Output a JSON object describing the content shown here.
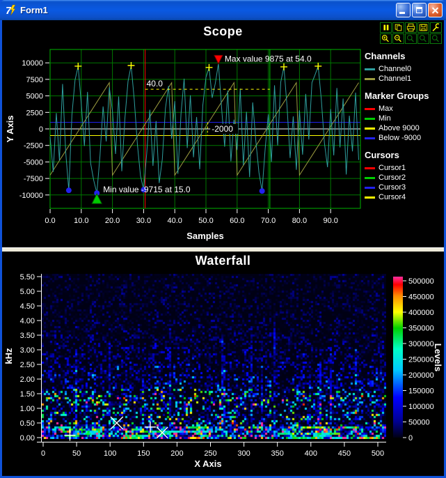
{
  "window": {
    "title": "Form1"
  },
  "toolbar": {
    "buttons": [
      "pause",
      "copy",
      "print",
      "save",
      "tools",
      "zoom-in",
      "zoom-out",
      "zoom-x",
      "zoom-y",
      "zoom-reset"
    ]
  },
  "scope": {
    "title": "Scope",
    "x_axis": {
      "label": "Samples",
      "tick_labels": [
        "0.0",
        "10.0",
        "20.0",
        "30.0",
        "40.0",
        "50.0",
        "60.0",
        "70.0",
        "80.0",
        "90.0"
      ]
    },
    "y_axis": {
      "label": "Y Axis",
      "tick_labels": [
        "10000",
        "7500",
        "5000",
        "2500",
        "0",
        "-2500",
        "-5000",
        "-7500",
        "-10000"
      ]
    },
    "legend": {
      "groups": [
        {
          "title": "Channels",
          "items": [
            {
              "label": "Channel0",
              "color": "#2E9E9E"
            },
            {
              "label": "Channel1",
              "color": "#9C9C3F"
            }
          ]
        },
        {
          "title": "Marker Groups",
          "items": [
            {
              "label": "Max",
              "color": "#FF0000"
            },
            {
              "label": "Min",
              "color": "#00CC00"
            },
            {
              "label": "Above 9000",
              "color": "#FFFF00"
            },
            {
              "label": "Below -9000",
              "color": "#2222EE"
            }
          ]
        },
        {
          "title": "Cursors",
          "items": [
            {
              "label": "Cursor1",
              "color": "#FF0000"
            },
            {
              "label": "Cursor2",
              "color": "#00CC00"
            },
            {
              "label": "Cursor3",
              "color": "#2222EE"
            },
            {
              "label": "Cursor4",
              "color": "#FFFF00"
            }
          ]
        }
      ]
    }
  },
  "waterfall": {
    "title": "Waterfall",
    "x_axis": {
      "label": "X Axis",
      "tick_labels": [
        "0",
        "50",
        "100",
        "150",
        "200",
        "250",
        "300",
        "350",
        "400",
        "450",
        "500"
      ]
    },
    "y_axis": {
      "label": "kHz",
      "tick_labels": [
        "5.50",
        "5.00",
        "4.50",
        "4.00",
        "3.50",
        "3.00",
        "2.50",
        "2.00",
        "1.50",
        "1.00",
        "0.50",
        "0.00"
      ]
    },
    "colorbar": {
      "label": "Levels",
      "tick_labels": [
        "500000",
        "450000",
        "400000",
        "350000",
        "300000",
        "250000",
        "200000",
        "150000",
        "100000",
        "50000",
        "0"
      ]
    }
  },
  "chart_data": [
    {
      "type": "line",
      "title": "Scope",
      "xlabel": "Samples",
      "ylabel": "Y Axis",
      "xlim": [
        0,
        99.5
      ],
      "ylim": [
        -12000,
        12000
      ],
      "x_ticks": [
        0,
        10,
        20,
        30,
        40,
        50,
        60,
        70,
        80,
        90
      ],
      "y_ticks": [
        10000,
        7500,
        5000,
        2500,
        0,
        -2500,
        -5000,
        -7500,
        -10000
      ],
      "grid": true,
      "legend_position": "right",
      "series": [
        {
          "name": "Channel0",
          "color": "#2E9E9E",
          "values": [
            -1200,
            -6500,
            2400,
            -4800,
            6800,
            -3500,
            -9300,
            2100,
            7400,
            9500,
            3800,
            -2600,
            5600,
            -5200,
            -7800,
            -9715,
            -4100,
            3400,
            -1900,
            6300,
            2700,
            -3800,
            4900,
            -6400,
            1600,
            7200,
            9600,
            4400,
            -2300,
            -7100,
            -9200,
            -3700,
            2900,
            -5600,
            1200,
            -8200,
            -4600,
            3100,
            6500,
            -1500,
            4200,
            -6800,
            2300,
            7600,
            -2900,
            5100,
            -4300,
            1800,
            -6100,
            3600,
            7800,
            9300,
            4700,
            6900,
            9875,
            3300,
            -2700,
            5800,
            -4900,
            1400,
            -3200,
            6100,
            -5500,
            2600,
            -7300,
            4000,
            -1800,
            -6600,
            -9400,
            -3000,
            2200,
            -5000,
            6600,
            -2500,
            7100,
            9400,
            3500,
            -4400,
            1900,
            -6200,
            2800,
            -3900,
            5300,
            -1600,
            7000,
            8200,
            9500,
            4500,
            -2100,
            -5800,
            3000,
            -4000,
            6200,
            -2800,
            4600,
            -6900,
            2000,
            -3400,
            5500,
            -4700
          ]
        },
        {
          "name": "Channel1",
          "color": "#9C9C3F",
          "waveform": "sawtooth",
          "period": 20,
          "min": -7000,
          "max": 7000,
          "n": 100
        }
      ],
      "markers": {
        "max": {
          "x": 54,
          "y": 9875,
          "label": "Max value 9875 at 54.0",
          "color": "#FF0000"
        },
        "min": {
          "x": 15,
          "y": -9715,
          "label": "Min value -9715 at 15.0",
          "color": "#00CC00"
        },
        "above_9000": [
          {
            "x": 9,
            "y": 9500
          },
          {
            "x": 26,
            "y": 9600
          },
          {
            "x": 51,
            "y": 9300
          },
          {
            "x": 75,
            "y": 9400
          },
          {
            "x": 86,
            "y": 9500
          }
        ],
        "below_9000": [
          {
            "x": 6,
            "y": -9300
          },
          {
            "x": 15,
            "y": -9715
          },
          {
            "x": 30,
            "y": -9200
          },
          {
            "x": 68,
            "y": -9400
          }
        ]
      },
      "cursors": [
        {
          "name": "Cursor1",
          "orient": "v",
          "value": 30.5,
          "color": "#FF0000"
        },
        {
          "name": "Cursor2",
          "orient": "v",
          "value": 70.5,
          "color": "#00CC00"
        },
        {
          "name": "Cursor3",
          "orient": "h",
          "value": 1000,
          "color": "#2222EE"
        },
        {
          "name": "Cursor4",
          "orient": "h",
          "value": -1000,
          "color": "#FFFF00"
        }
      ],
      "zero_line": 0,
      "measurements": {
        "dx": {
          "y": 6000,
          "x1": 30.5,
          "x2": 70.5,
          "label": "40.0"
        },
        "dy": {
          "x": 50.5,
          "y1": 1000,
          "y2": -1000,
          "label": "-2000"
        }
      }
    },
    {
      "type": "heatmap",
      "title": "Waterfall",
      "xlabel": "X Axis",
      "ylabel": "kHz",
      "xlim": [
        0,
        512
      ],
      "ylim": [
        0,
        5.6
      ],
      "x_ticks": [
        0,
        50,
        100,
        150,
        200,
        250,
        300,
        350,
        400,
        450,
        500
      ],
      "y_ticks": [
        5.5,
        5.0,
        4.5,
        4.0,
        3.5,
        3.0,
        2.5,
        2.0,
        1.5,
        1.0,
        0.5,
        0.0
      ],
      "colorbar": {
        "label": "Levels",
        "min": 0,
        "max": 520000,
        "ticks": [
          500000,
          450000,
          400000,
          350000,
          300000,
          250000,
          200000,
          150000,
          100000,
          50000,
          0
        ],
        "colormap": [
          [
            0,
            "#000014"
          ],
          [
            0.1,
            "#000090"
          ],
          [
            0.25,
            "#0000FF"
          ],
          [
            0.42,
            "#00C8FF"
          ],
          [
            0.55,
            "#00FFC8"
          ],
          [
            0.68,
            "#00D000"
          ],
          [
            0.78,
            "#FFFF00"
          ],
          [
            0.88,
            "#FF8C00"
          ],
          [
            0.95,
            "#FF0000"
          ],
          [
            1,
            "#FF2DA0"
          ]
        ]
      },
      "noise_seed": 20,
      "content_note": "random spectral noise, intensity concentrated below 1.5 kHz with bright bands near 0 kHz",
      "point_markers": [
        {
          "shape": "plus",
          "color": "#FFFFFF",
          "size": 8,
          "x": 40,
          "y": 0.08
        },
        {
          "shape": "cross",
          "color": "#FFFFFF",
          "size": 9,
          "x": 110,
          "y": 0.5
        },
        {
          "shape": "plus",
          "color": "#FFFFFF",
          "size": 8,
          "x": 160,
          "y": 0.36
        },
        {
          "shape": "cross",
          "color": "#FFFFFF",
          "size": 8,
          "x": 178,
          "y": 0.17
        },
        {
          "shape": "plus",
          "color": "#00FF00",
          "size": 5,
          "x": 58,
          "y": 0.26
        },
        {
          "shape": "plus",
          "color": "#00FF00",
          "size": 4,
          "x": 67,
          "y": 0.12
        }
      ]
    }
  ]
}
